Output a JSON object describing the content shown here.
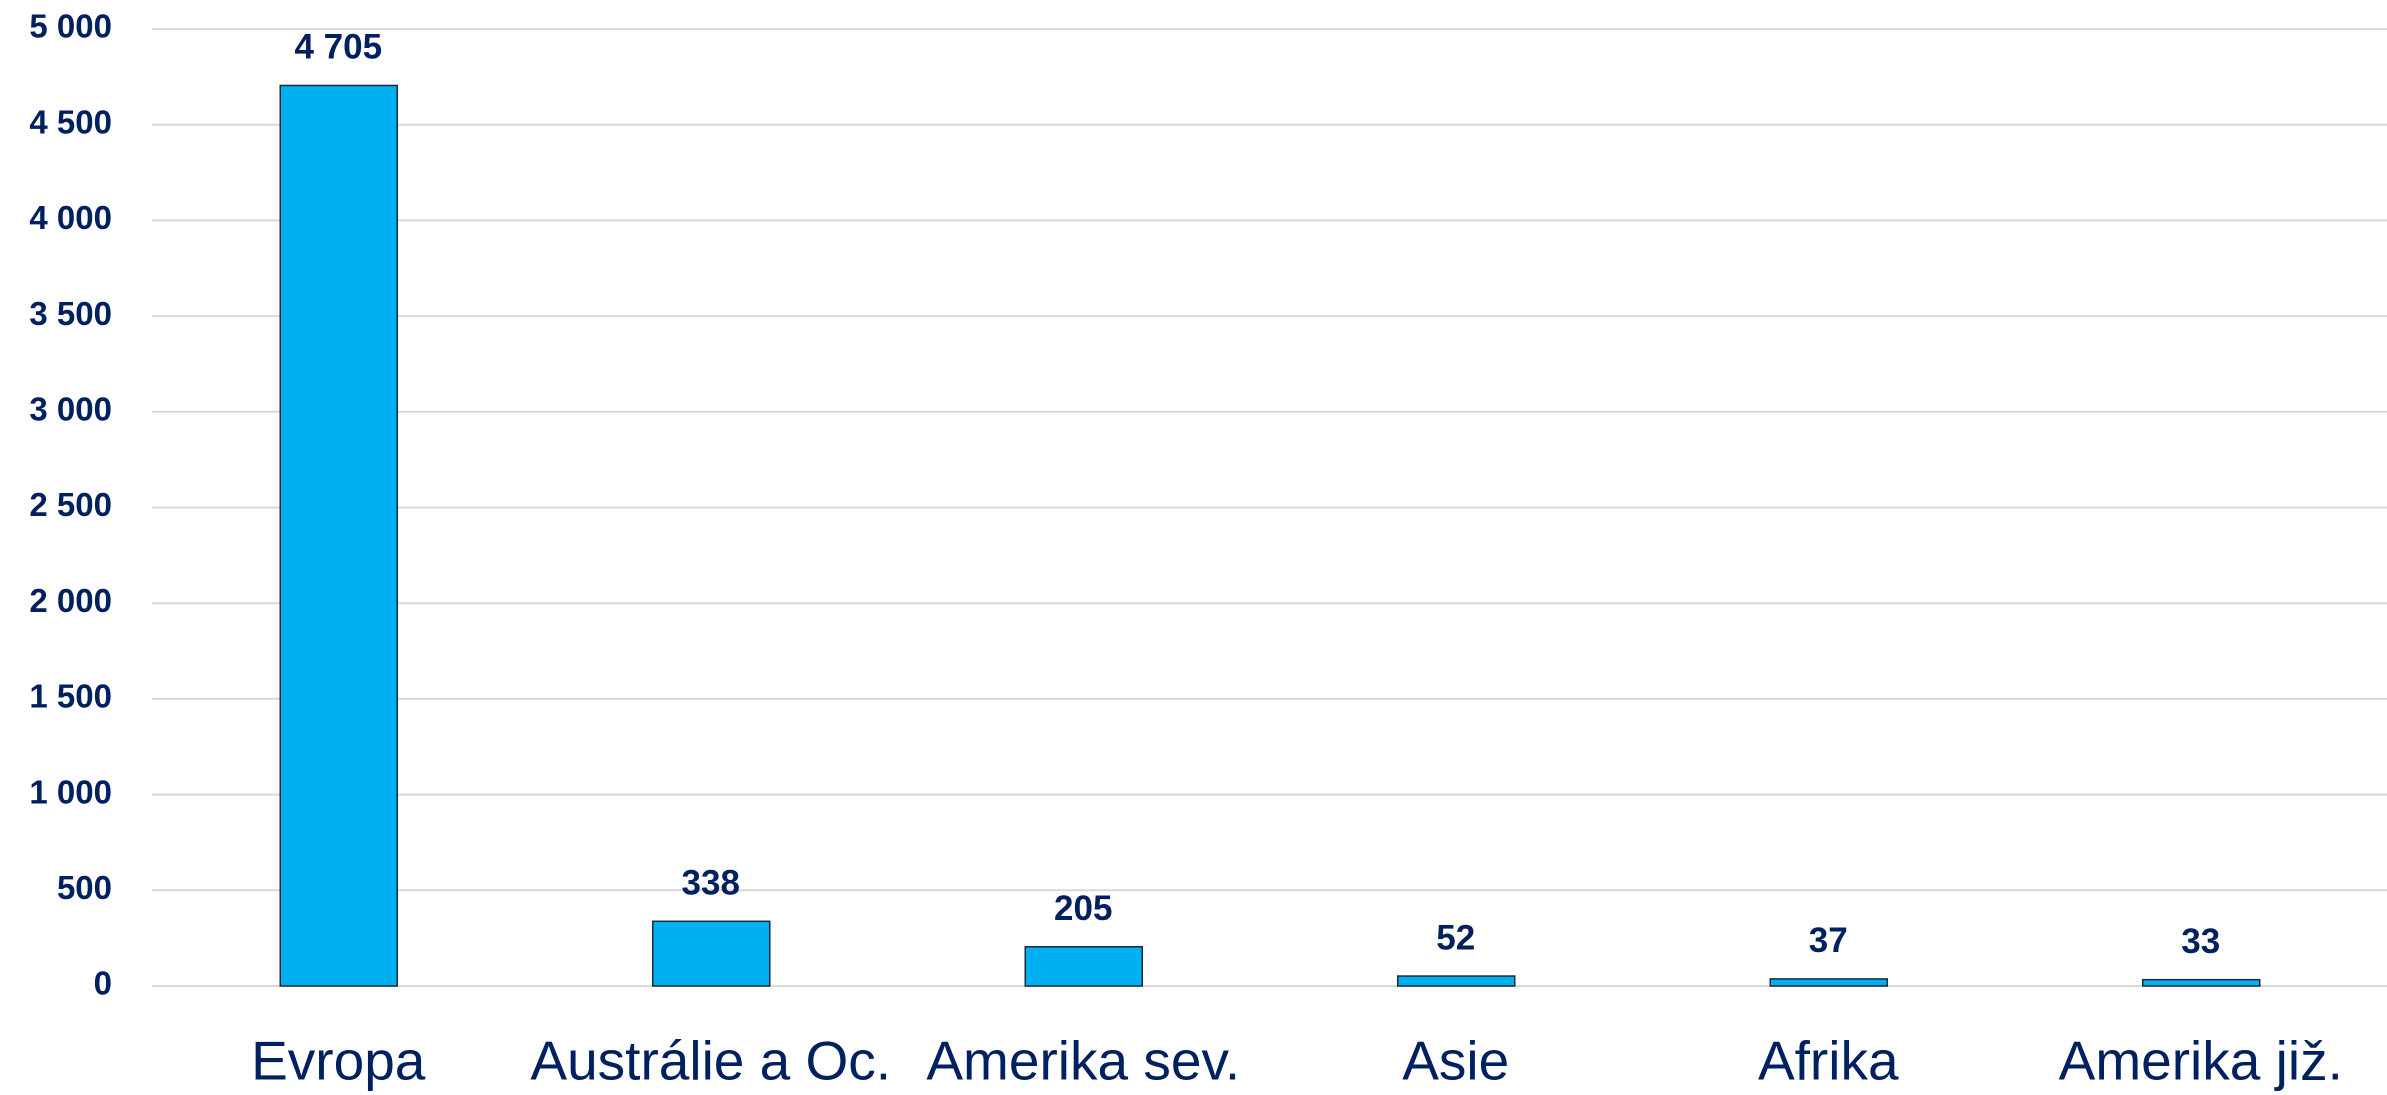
{
  "chart_data": {
    "type": "bar",
    "categories": [
      "Evropa",
      "Austrálie a Oc.",
      "Amerika sev.",
      "Asie",
      "Afrika",
      "Amerika již."
    ],
    "values": [
      4705,
      338,
      205,
      52,
      37,
      33
    ],
    "value_labels": [
      "4 705",
      "338",
      "205",
      "52",
      "37",
      "33"
    ],
    "color": "#00b0f0",
    "ylim": [
      0,
      5000
    ],
    "yticks": [
      0,
      500,
      {
        "value": 1000,
        "label": "1 000"
      },
      {
        "value": 1500,
        "label": "1 500"
      },
      {
        "value": 2000,
        "label": "2 000"
      },
      {
        "value": 2500,
        "label": "2 500"
      },
      {
        "value": 3000,
        "label": "3 000"
      },
      {
        "value": 3500,
        "label": "3 500"
      },
      {
        "value": 4000,
        "label": "4 000"
      },
      {
        "value": 4500,
        "label": "4 500"
      },
      {
        "value": 5000,
        "label": "5 000"
      }
    ],
    "grid": true
  }
}
